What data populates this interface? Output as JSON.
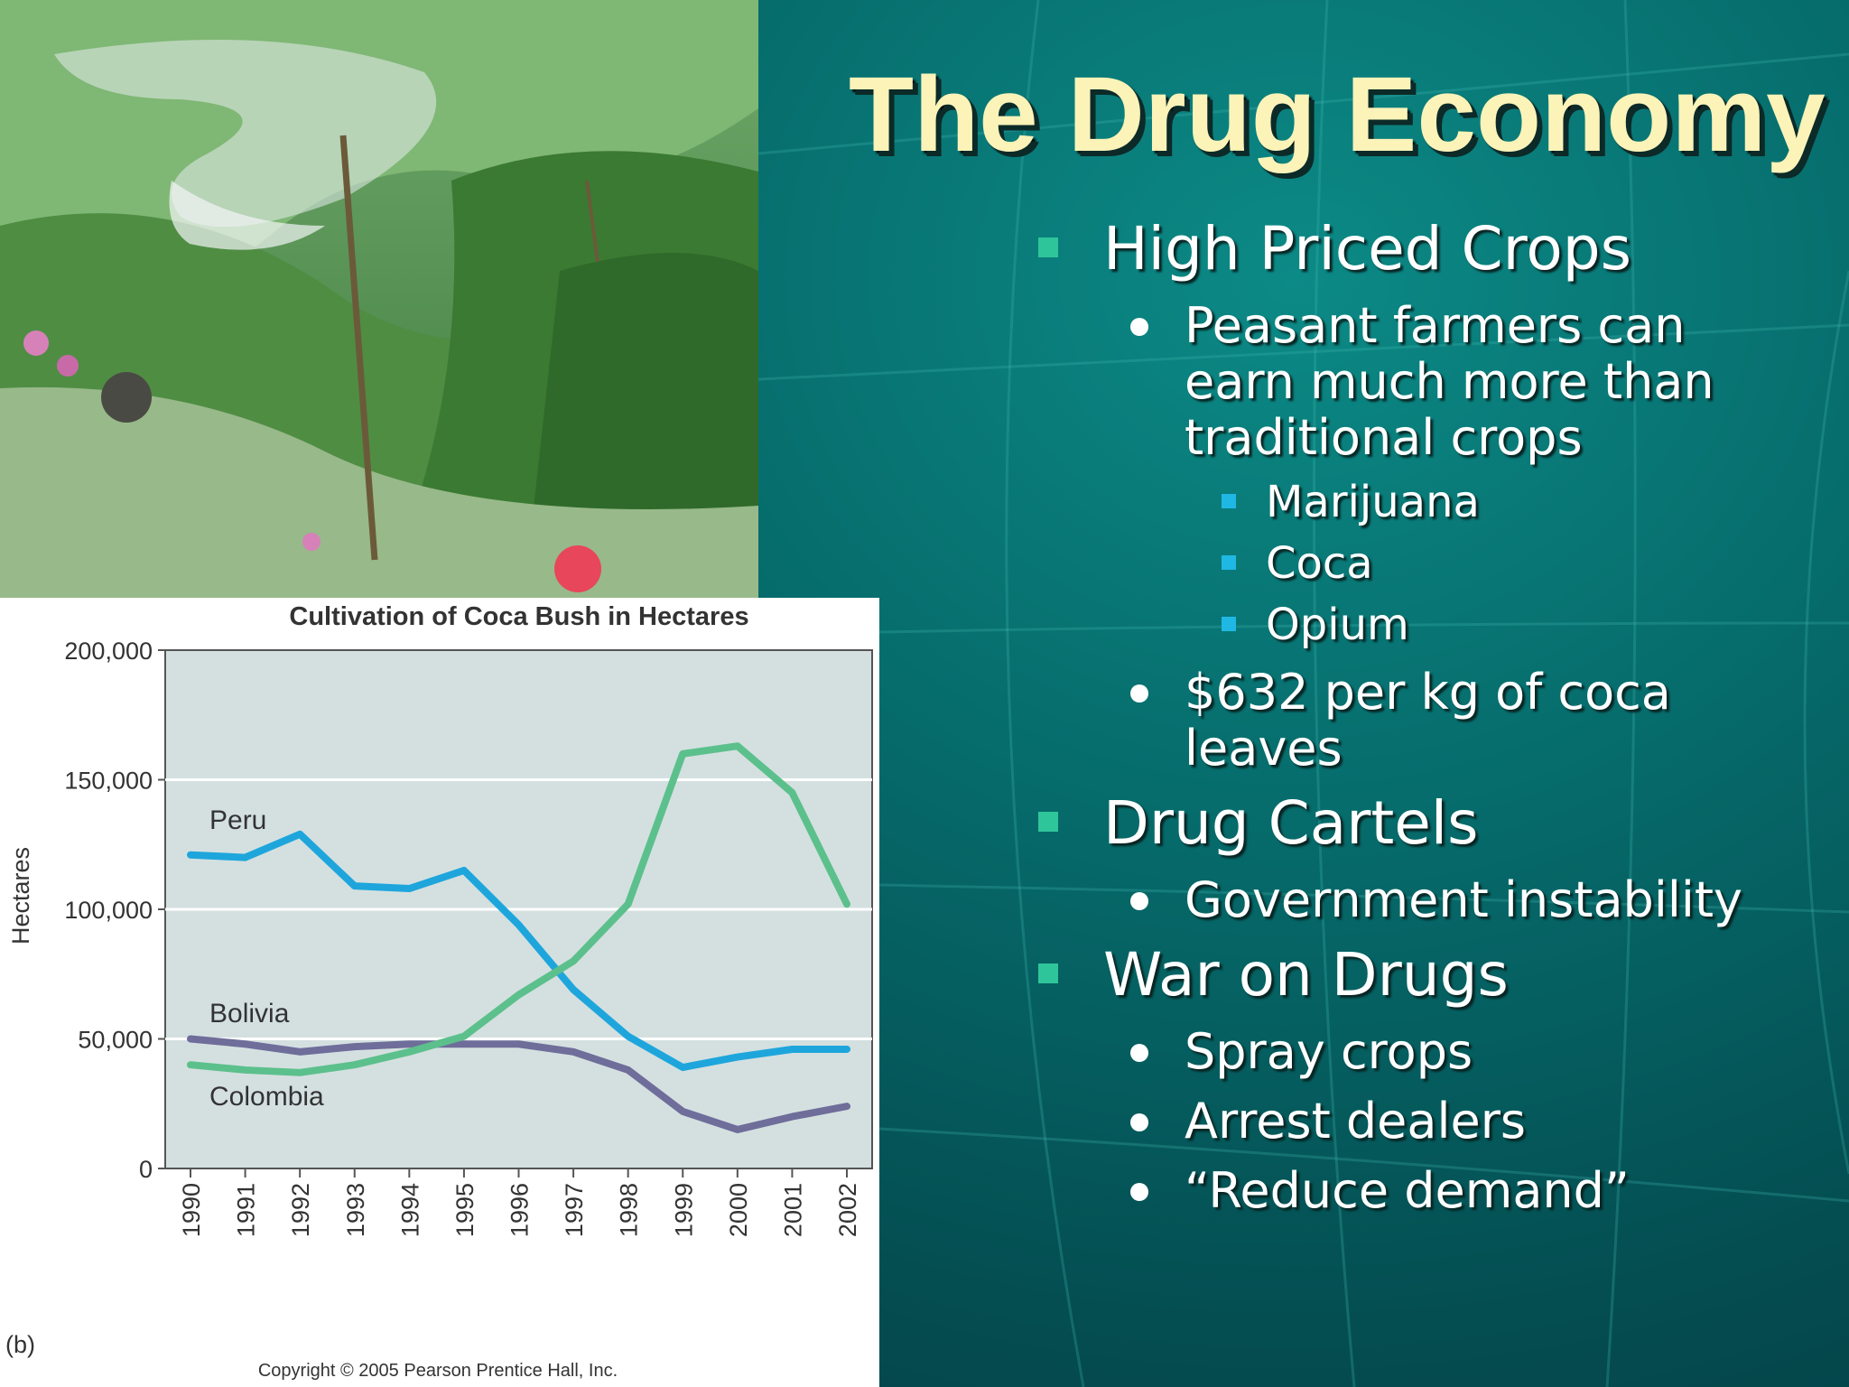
{
  "slide": {
    "title": "The Drug Economy",
    "bullets": [
      {
        "text": "High Priced Crops",
        "children": [
          {
            "text_lines": [
              "Peasant farmers can",
              "earn much more than",
              "traditional crops"
            ],
            "children": [
              "Marijuana",
              "Coca",
              "Opium"
            ]
          },
          {
            "text_lines": [
              "$632 per kg of coca",
              "leaves"
            ],
            "children": []
          }
        ]
      },
      {
        "text": "Drug Cartels",
        "children": [
          {
            "text_lines": [
              "Government instability"
            ],
            "children": []
          }
        ]
      },
      {
        "text": "War on Drugs",
        "children": [
          {
            "text_lines": [
              "Spray crops"
            ],
            "children": []
          },
          {
            "text_lines": [
              "Arrest dealers"
            ],
            "children": []
          },
          {
            "text_lines": [
              "“Reduce demand”"
            ],
            "children": []
          }
        ]
      }
    ]
  },
  "chart_data": {
    "type": "line",
    "title": "Cultivation of Coca Bush in Hectares",
    "xlabel": "",
    "ylabel": "Hectares",
    "x": [
      "1990",
      "1991",
      "1992",
      "1993",
      "1994",
      "1995",
      "1996",
      "1997",
      "1998",
      "1999",
      "2000",
      "2001",
      "2002"
    ],
    "ylim": [
      0,
      200000
    ],
    "yticks": [
      "0",
      "50,000",
      "100,000",
      "150,000",
      "200,000"
    ],
    "grid": true,
    "series": [
      {
        "name": "Peru",
        "color": "#1ea6dc",
        "values": [
          121000,
          120000,
          129000,
          109000,
          108000,
          115000,
          94000,
          69000,
          51000,
          39000,
          43000,
          46000,
          46000
        ]
      },
      {
        "name": "Bolivia",
        "color": "#6f6d9a",
        "values": [
          50000,
          48000,
          45000,
          47000,
          48000,
          48000,
          48000,
          45000,
          38000,
          22000,
          15000,
          20000,
          24000
        ]
      },
      {
        "name": "Colombia",
        "color": "#5cc08c",
        "values": [
          40000,
          38000,
          37000,
          40000,
          45000,
          51000,
          67000,
          80000,
          102000,
          160000,
          163000,
          145000,
          102000
        ]
      }
    ],
    "panel_label": "(b)",
    "copyright": "Copyright © 2005 Pearson Prentice Hall, Inc."
  }
}
